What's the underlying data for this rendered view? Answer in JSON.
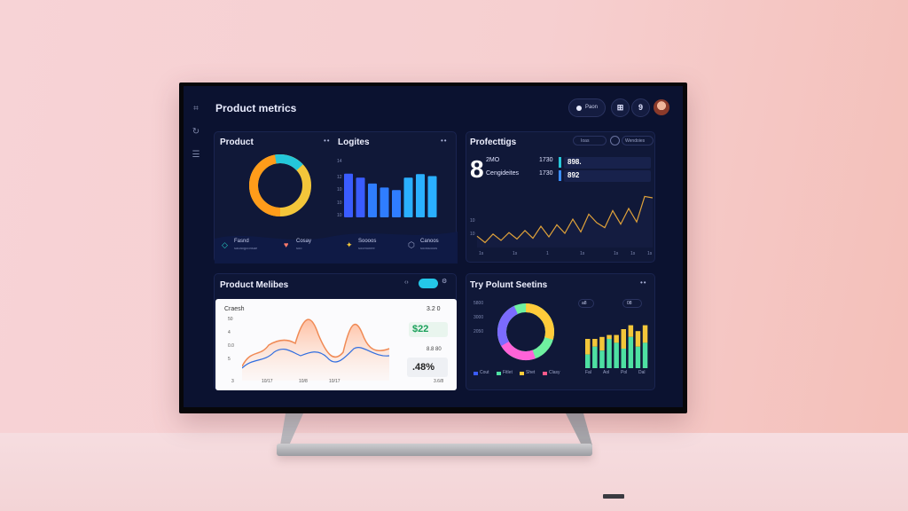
{
  "header": {
    "title": "Product metrics",
    "pill_label": "Paon",
    "icon1": "⊞",
    "icon2": "9"
  },
  "sidebar": {
    "icons": [
      "grid-icon",
      "refresh-icon",
      "list-icon"
    ]
  },
  "panel1": {
    "title": "Product",
    "title2": "Logites",
    "legend": [
      {
        "label": "Fasnd",
        "sub": "saoaogoonsae",
        "icon": "diamond-icon",
        "color": "#27d0c4"
      },
      {
        "label": "Cosay",
        "sub": "soo",
        "icon": "heart-icon",
        "color": "#ff7a6a"
      },
      {
        "label": "Soooos",
        "sub": "soomonee",
        "icon": "sparkle-icon",
        "color": "#f3c63a"
      },
      {
        "label": "Canoos",
        "sub": "soossooos",
        "icon": "shield-icon",
        "color": "#9aa3c6"
      }
    ],
    "bar_values": [
      88,
      80,
      68,
      60,
      55,
      80,
      87,
      83
    ],
    "donut_colors": [
      "#f3c63a",
      "#ff9c1a",
      "#24c7d9",
      "#f7e04a"
    ]
  },
  "panel2": {
    "title": "Profecttigs",
    "chip1": "Ioas",
    "chip2": "Wendoies",
    "big_number": "8",
    "rows": [
      {
        "label": "2MO",
        "pct": "1730",
        "value": "898.",
        "bar_color": "#27c7d9"
      },
      {
        "label": "Cengideites",
        "pct": "1730",
        "value": "892",
        "bar_color": "#3a8dff"
      }
    ],
    "line_values": [
      16,
      7,
      19,
      10,
      21,
      12,
      24,
      13,
      30,
      15,
      32,
      20,
      40,
      22,
      47,
      35,
      28,
      52,
      33,
      55,
      36,
      72,
      70
    ],
    "ticks": [
      "1s",
      "",
      "1s",
      "",
      "1",
      "",
      "1s",
      "",
      "1s",
      "1s",
      "1s"
    ]
  },
  "panel3": {
    "title": "Product Melibes",
    "card_label": "Craesh",
    "card_value_top": "3.2 0",
    "green_value": "$22",
    "grey_sub": "8.8 80",
    "pct_value": ".48%",
    "ylabels": [
      "50",
      "4",
      "0.0",
      "5"
    ],
    "xlabels": [
      "3",
      "10/17",
      "10/8",
      "10/17",
      "3.6/8"
    ]
  },
  "panel4": {
    "title": "Try Polunt Seetins",
    "chip1": "a8",
    "chip2": "08",
    "ylabels": [
      "5800",
      "3000",
      "2050"
    ],
    "donut_colors": [
      "#ff63d8",
      "#7b6bff",
      "#ffcb3a",
      "#6ff0a0"
    ],
    "legend": [
      {
        "label": "Cout",
        "color": "#3a5cff"
      },
      {
        "label": "Fitlet",
        "color": "#4ee0a2"
      },
      {
        "label": "Shet",
        "color": "#ffcb3a"
      },
      {
        "label": "Clasy",
        "color": "#ff5a8a"
      }
    ],
    "bars": [
      {
        "green": 14,
        "gold": 30
      },
      {
        "green": 22,
        "gold": 30
      },
      {
        "green": 18,
        "gold": 32
      },
      {
        "green": 30,
        "gold": 34
      },
      {
        "green": 26,
        "gold": 34
      },
      {
        "green": 20,
        "gold": 40
      },
      {
        "green": 32,
        "gold": 44
      },
      {
        "green": 22,
        "gold": 38
      },
      {
        "green": 26,
        "gold": 44
      }
    ],
    "xlabels": [
      "Fal",
      "Aol",
      "Pol",
      "Dal"
    ]
  }
}
